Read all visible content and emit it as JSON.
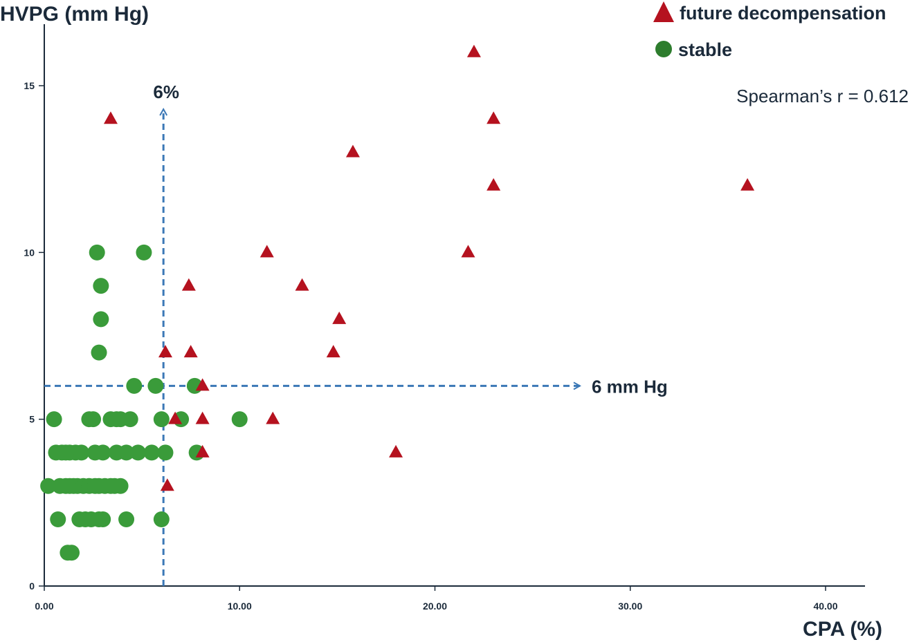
{
  "chart_data": {
    "type": "scatter",
    "xlabel": "CPA (%)",
    "ylabel": "HVPG (mm Hg)",
    "xlim": [
      0,
      42
    ],
    "ylim": [
      0,
      17
    ],
    "x_ticks": [
      0,
      10,
      20,
      30,
      40
    ],
    "x_tick_labels": [
      "0.00",
      "10.00",
      "20.00",
      "30.00",
      "40.00"
    ],
    "y_ticks": [
      0,
      5,
      10,
      15
    ],
    "y_tick_labels": [
      "0",
      "5",
      "10",
      "15"
    ],
    "grid": false,
    "legend_position": "top-right",
    "annotations": {
      "correlation": "Spearman’s  r = 0.612",
      "vertical_cutoff_label": "6%",
      "vertical_cutoff_x": 6.1,
      "horizontal_cutoff_label": "6 mm Hg",
      "horizontal_cutoff_y": 6
    },
    "series": [
      {
        "name": "future decompensation",
        "marker": "triangle",
        "color": "#b5121f",
        "points": [
          [
            22,
            16
          ],
          [
            3.4,
            14
          ],
          [
            23,
            14
          ],
          [
            15.8,
            13
          ],
          [
            23,
            12
          ],
          [
            36,
            12
          ],
          [
            11.4,
            10
          ],
          [
            21.7,
            10
          ],
          [
            7.4,
            9
          ],
          [
            13.2,
            9
          ],
          [
            15.1,
            8
          ],
          [
            6.2,
            7
          ],
          [
            7.5,
            7
          ],
          [
            14.8,
            7
          ],
          [
            8.1,
            6
          ],
          [
            6.7,
            5
          ],
          [
            8.1,
            5
          ],
          [
            11.7,
            5
          ],
          [
            8.1,
            4
          ],
          [
            18,
            4
          ],
          [
            6.3,
            3
          ]
        ]
      },
      {
        "name": "stable",
        "marker": "circle",
        "color": "#3a9b3a",
        "points": [
          [
            2.7,
            10
          ],
          [
            5.1,
            10
          ],
          [
            2.9,
            9
          ],
          [
            2.9,
            8
          ],
          [
            2.8,
            7
          ],
          [
            4.6,
            6
          ],
          [
            5.7,
            6
          ],
          [
            7.7,
            6
          ],
          [
            0.5,
            5
          ],
          [
            2.3,
            5
          ],
          [
            2.5,
            5
          ],
          [
            3.4,
            5
          ],
          [
            3.7,
            5
          ],
          [
            3.9,
            5
          ],
          [
            4.4,
            5
          ],
          [
            6.0,
            5
          ],
          [
            7.0,
            5
          ],
          [
            10.0,
            5
          ],
          [
            0.6,
            4
          ],
          [
            0.9,
            4
          ],
          [
            1.1,
            4
          ],
          [
            1.3,
            4
          ],
          [
            1.6,
            4
          ],
          [
            1.9,
            4
          ],
          [
            2.6,
            4
          ],
          [
            3.0,
            4
          ],
          [
            3.7,
            4
          ],
          [
            4.2,
            4
          ],
          [
            4.8,
            4
          ],
          [
            5.5,
            4
          ],
          [
            6.2,
            4
          ],
          [
            7.8,
            4
          ],
          [
            0.2,
            3
          ],
          [
            0.8,
            3
          ],
          [
            1.1,
            3
          ],
          [
            1.3,
            3
          ],
          [
            1.5,
            3
          ],
          [
            1.7,
            3
          ],
          [
            2.0,
            3
          ],
          [
            2.3,
            3
          ],
          [
            2.6,
            3
          ],
          [
            2.8,
            3
          ],
          [
            3.1,
            3
          ],
          [
            3.4,
            3
          ],
          [
            3.6,
            3
          ],
          [
            3.9,
            3
          ],
          [
            0.7,
            2
          ],
          [
            1.8,
            2
          ],
          [
            2.1,
            2
          ],
          [
            2.4,
            2
          ],
          [
            2.8,
            2
          ],
          [
            3.0,
            2
          ],
          [
            4.2,
            2
          ],
          [
            6.0,
            2
          ],
          [
            1.2,
            1
          ],
          [
            1.4,
            1
          ]
        ]
      }
    ]
  }
}
